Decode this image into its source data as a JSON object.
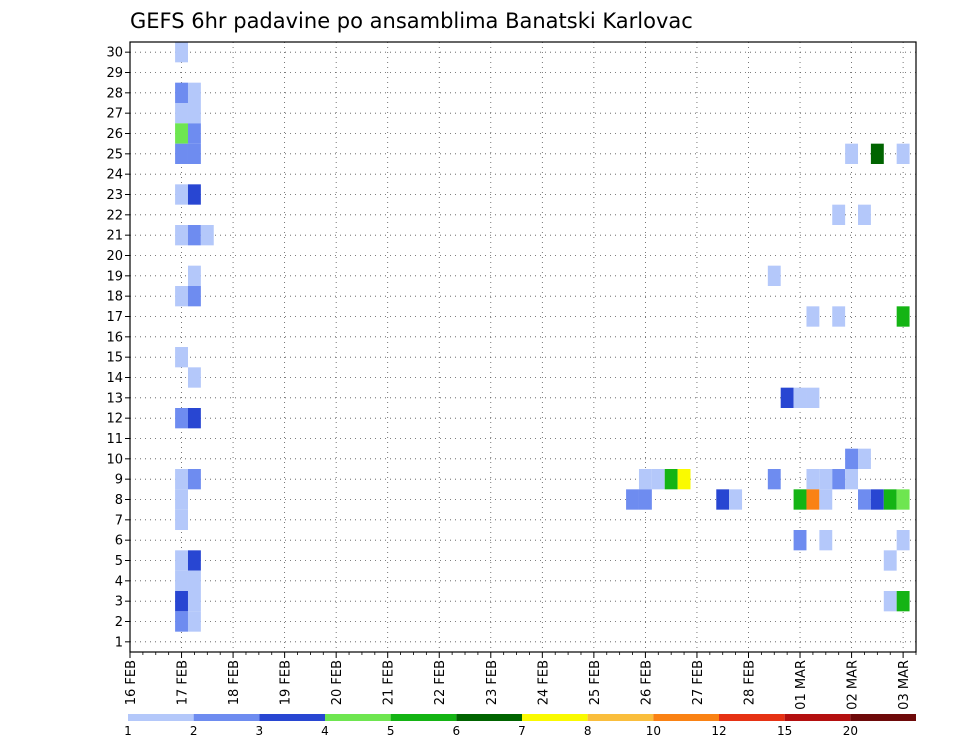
{
  "chart_data": {
    "type": "heatmap",
    "title": "GEFS 6hr padavine po ansamblima Banatski Karlovac",
    "xlabel": "",
    "ylabel": "",
    "x_axis": {
      "unit": "6h step",
      "range": [
        0,
        61
      ],
      "tick_labels": [
        "16 FEB",
        "17 FEB",
        "18 FEB",
        "19 FEB",
        "20 FEB",
        "21 FEB",
        "22 FEB",
        "23 FEB",
        "24 FEB",
        "25 FEB",
        "26 FEB",
        "27 FEB",
        "28 FEB",
        "01 MAR",
        "02 MAR",
        "03 MAR"
      ]
    },
    "y_axis": {
      "range": [
        0.5,
        30.5
      ],
      "tick_labels": [
        "1",
        "2",
        "3",
        "4",
        "5",
        "6",
        "7",
        "8",
        "9",
        "10",
        "11",
        "12",
        "13",
        "14",
        "15",
        "16",
        "17",
        "18",
        "19",
        "20",
        "21",
        "22",
        "23",
        "24",
        "25",
        "26",
        "27",
        "28",
        "29",
        "30"
      ]
    },
    "grid": true,
    "colorbar": {
      "placement": "bottom",
      "labels": [
        "1",
        "2",
        "3",
        "4",
        "5",
        "6",
        "7",
        "8",
        "10",
        "12",
        "15",
        "20"
      ],
      "colors": [
        "#b4c8fa",
        "#6e8cf0",
        "#2846d2",
        "#6ee650",
        "#14b414",
        "#006400",
        "#fafa00",
        "#fabe3c",
        "#fa8214",
        "#e63214",
        "#b40f0f",
        "#6e0a0a"
      ]
    },
    "note_x": "x = 6-hour step index, 4 steps per day, step 0 = 16 FEB 00Z",
    "cells": [
      [
        4,
        30,
        1
      ],
      [
        4,
        28,
        2
      ],
      [
        4,
        27,
        1
      ],
      [
        4,
        26,
        4
      ],
      [
        4,
        25,
        2
      ],
      [
        4,
        23,
        1
      ],
      [
        4,
        21,
        1
      ],
      [
        4,
        18,
        1
      ],
      [
        4,
        15,
        1
      ],
      [
        4,
        12,
        2
      ],
      [
        4,
        9,
        1
      ],
      [
        4,
        8,
        1
      ],
      [
        4,
        7,
        1
      ],
      [
        4,
        5,
        1
      ],
      [
        4,
        4,
        1
      ],
      [
        4,
        3,
        3
      ],
      [
        4,
        2,
        2
      ],
      [
        5,
        28,
        1
      ],
      [
        5,
        27,
        1
      ],
      [
        5,
        26,
        2
      ],
      [
        5,
        25,
        2
      ],
      [
        5,
        23,
        3
      ],
      [
        5,
        21,
        2
      ],
      [
        5,
        19,
        1
      ],
      [
        5,
        18,
        2
      ],
      [
        5,
        14,
        1
      ],
      [
        5,
        12,
        3
      ],
      [
        5,
        9,
        2
      ],
      [
        5,
        5,
        3
      ],
      [
        5,
        4,
        1
      ],
      [
        5,
        3,
        1
      ],
      [
        5,
        2,
        1
      ],
      [
        6,
        21,
        1
      ],
      [
        39,
        8,
        2
      ],
      [
        40,
        9,
        1
      ],
      [
        40,
        8,
        2
      ],
      [
        41,
        9,
        1
      ],
      [
        42,
        9,
        5
      ],
      [
        43,
        9,
        7
      ],
      [
        46,
        8,
        3
      ],
      [
        47,
        8,
        1
      ],
      [
        50,
        19,
        1
      ],
      [
        50,
        9,
        2
      ],
      [
        51,
        13,
        3
      ],
      [
        52,
        13,
        1
      ],
      [
        52,
        8,
        5
      ],
      [
        52,
        6,
        2
      ],
      [
        53,
        17,
        1
      ],
      [
        53,
        13,
        1
      ],
      [
        53,
        9,
        1
      ],
      [
        53,
        8,
        9
      ],
      [
        54,
        9,
        1
      ],
      [
        54,
        8,
        1
      ],
      [
        54,
        6,
        1
      ],
      [
        55,
        22,
        1
      ],
      [
        55,
        17,
        1
      ],
      [
        55,
        9,
        2
      ],
      [
        56,
        25,
        1
      ],
      [
        56,
        10,
        2
      ],
      [
        56,
        9,
        1
      ],
      [
        57,
        22,
        1
      ],
      [
        57,
        10,
        1
      ],
      [
        57,
        8,
        2
      ],
      [
        58,
        25,
        6
      ],
      [
        58,
        8,
        3
      ],
      [
        59,
        8,
        5
      ],
      [
        59,
        5,
        1
      ],
      [
        59,
        3,
        1
      ],
      [
        60,
        25,
        1
      ],
      [
        60,
        17,
        5
      ],
      [
        60,
        8,
        4
      ],
      [
        60,
        6,
        1
      ],
      [
        60,
        3,
        5
      ]
    ]
  }
}
